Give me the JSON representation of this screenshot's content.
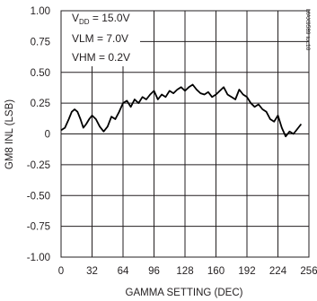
{
  "chart_data": {
    "type": "line",
    "xlabel": "GAMMA SETTING (DEC)",
    "ylabel": "GM8 INL (LSB)",
    "xlim": [
      0,
      256
    ],
    "ylim": [
      -1.0,
      1.0
    ],
    "x_ticks": [
      "0",
      "32",
      "64",
      "96",
      "128",
      "160",
      "192",
      "224",
      "256"
    ],
    "y_ticks": [
      "1.00",
      "0.75",
      "0.50",
      "0.25",
      "0",
      "-0.25",
      "-0.50",
      "-0.75",
      "-1.00"
    ],
    "grid": true,
    "legend": {
      "placement": "top-left",
      "vdd_main": "V",
      "vdd_sub": "DD",
      "vdd_value": " = 15.0V",
      "vlm": "VLM = 7.0V",
      "vhm": "VHM = 0.2V"
    },
    "watermark": "MAX9589 toc10",
    "colors": {
      "line": "#000000",
      "grid": "#231f20",
      "background": "#ffffff"
    },
    "series": [
      {
        "x": [
          0,
          4,
          8,
          11,
          14,
          17,
          20,
          23,
          26,
          29,
          32,
          36,
          40,
          44,
          48,
          52,
          56,
          60,
          64,
          68,
          72,
          76,
          80,
          84,
          88,
          92,
          96,
          100,
          104,
          108,
          112,
          116,
          120,
          124,
          128,
          132,
          136,
          140,
          144,
          148,
          152,
          156,
          160,
          164,
          168,
          172,
          176,
          180,
          184,
          188,
          192,
          196,
          200,
          204,
          208,
          212,
          216,
          220,
          224,
          228,
          232,
          236,
          240,
          244,
          248
        ],
        "y": [
          0.03,
          0.05,
          0.12,
          0.18,
          0.2,
          0.18,
          0.12,
          0.05,
          0.08,
          0.12,
          0.15,
          0.12,
          0.06,
          0.02,
          0.06,
          0.14,
          0.12,
          0.18,
          0.25,
          0.27,
          0.22,
          0.28,
          0.25,
          0.3,
          0.28,
          0.32,
          0.35,
          0.28,
          0.32,
          0.3,
          0.35,
          0.33,
          0.36,
          0.38,
          0.35,
          0.38,
          0.4,
          0.36,
          0.33,
          0.32,
          0.34,
          0.3,
          0.32,
          0.35,
          0.38,
          0.32,
          0.3,
          0.28,
          0.36,
          0.32,
          0.3,
          0.25,
          0.22,
          0.24,
          0.2,
          0.18,
          0.12,
          0.1,
          0.15,
          0.05,
          -0.02,
          0.02,
          0.0,
          0.04,
          0.08
        ]
      }
    ]
  }
}
